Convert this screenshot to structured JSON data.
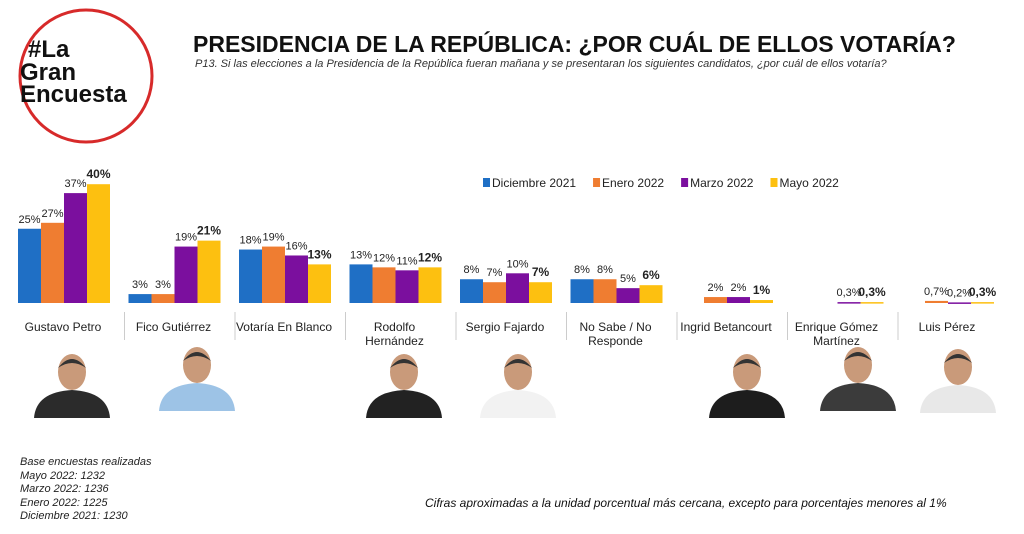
{
  "logo": [
    "#La",
    "Gran",
    "Encuesta"
  ],
  "chart_data": {
    "type": "bar",
    "title": "PRESIDENCIA DE LA REPÚBLICA: ¿POR CUÁL DE ELLOS VOTARÍA?",
    "subtitle": "P13. Si las elecciones a la Presidencia de la República fueran mañana y se presentaran los siguientes candidatos, ¿por cuál de ellos votaría?",
    "categories": [
      "Gustavo Petro",
      "Fico Gutiérrez",
      "Votaría En Blanco",
      "Rodolfo\nHernández",
      "Sergio Fajardo",
      "No Sabe / No\nResponde",
      "Ingrid Betancourt",
      "Enrique Gómez\nMartínez",
      "Luis Pérez"
    ],
    "series": [
      {
        "name": "Diciembre 2021",
        "color": "#1f6fc5",
        "values": [
          25,
          3,
          18,
          13,
          8,
          8,
          null,
          null,
          null
        ],
        "value_labels": [
          "25%",
          "3%",
          "18%",
          "13%",
          "8%",
          "8%",
          null,
          null,
          null
        ]
      },
      {
        "name": "Enero 2022",
        "color": "#ef7d31",
        "values": [
          27,
          3,
          19,
          12,
          7,
          8,
          2,
          null,
          0.7
        ],
        "value_labels": [
          "27%",
          "3%",
          "19%",
          "12%",
          "7%",
          "8%",
          "2%",
          null,
          "0,7%"
        ]
      },
      {
        "name": "Marzo 2022",
        "color": "#7b0f9e",
        "values": [
          37,
          19,
          16,
          11,
          10,
          5,
          2,
          0.3,
          0.2
        ],
        "value_labels": [
          "37%",
          "19%",
          "16%",
          "11%",
          "10%",
          "5%",
          "2%",
          "0,3%",
          "0,2%"
        ]
      },
      {
        "name": "Mayo 2022",
        "color": "#fdc010",
        "values": [
          40,
          21,
          13,
          12,
          7,
          6,
          1,
          0.3,
          0.3
        ],
        "value_labels": [
          "40%",
          "21%",
          "13%",
          "12%",
          "7%",
          "6%",
          "1%",
          "0,3%",
          "0,3%"
        ]
      }
    ],
    "legend": "top-right",
    "notes": [
      "Base encuestas realizadas",
      "Mayo 2022: 1232",
      "Marzo 2022: 1236",
      "Enero 2022: 1225",
      "Diciembre 2021: 1230"
    ],
    "footnote": "Cifras aproximadas a la unidad porcentual más cercana, excepto para porcentajes menores al 1%"
  }
}
